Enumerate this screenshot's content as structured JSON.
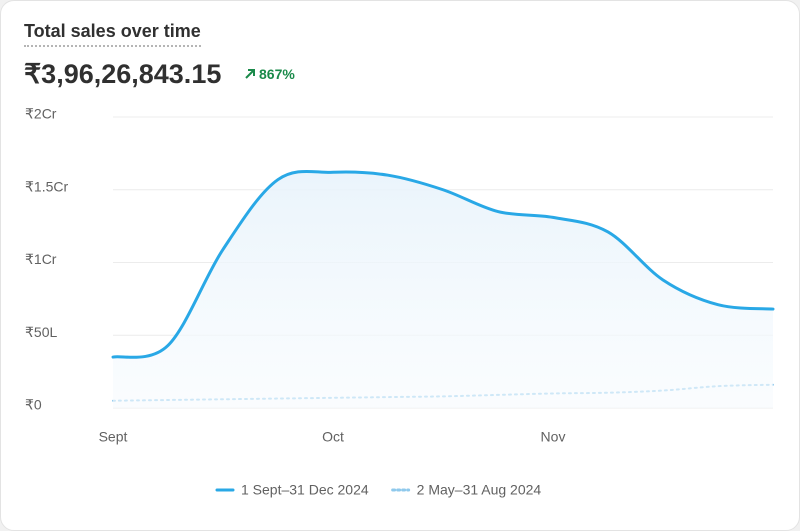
{
  "header": {
    "title": "Total sales over time",
    "total": "₹3,96,26,843.15",
    "change": "867%"
  },
  "chart_data": {
    "type": "line",
    "categories": [
      "Sept",
      null,
      null,
      null,
      "Oct",
      null,
      null,
      null,
      "Nov",
      null,
      null,
      null,
      null
    ],
    "series": [
      {
        "name": "1 Sept–31 Dec 2024",
        "color": "#29a8e6",
        "style": "solid",
        "values": [
          3500000,
          4300000,
          10900000,
          15700000,
          16200000,
          16000000,
          15000000,
          13500000,
          13100000,
          12100000,
          8800000,
          7100000,
          6800000
        ]
      },
      {
        "name": "2 May–31 Aug 2024",
        "color": "#8fc9ec",
        "style": "dotted",
        "values": [
          500000,
          550000,
          600000,
          650000,
          700000,
          750000,
          800000,
          900000,
          1000000,
          1050000,
          1200000,
          1500000,
          1600000
        ]
      }
    ],
    "ylim": [
      0,
      20000000
    ],
    "yticks": [
      {
        "value": 0,
        "label": "₹0"
      },
      {
        "value": 5000000,
        "label": "₹50L"
      },
      {
        "value": 10000000,
        "label": "₹1Cr"
      },
      {
        "value": 15000000,
        "label": "₹1.5Cr"
      },
      {
        "value": 20000000,
        "label": "₹2Cr"
      }
    ],
    "grid": true,
    "legend": "bottom"
  }
}
